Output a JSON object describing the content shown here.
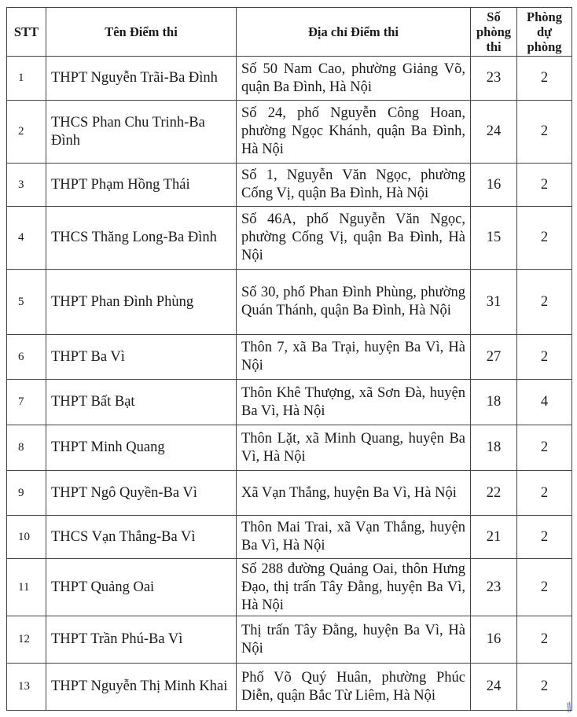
{
  "headers": {
    "stt": "STT",
    "name": "Tên Điểm thi",
    "address": "Địa chỉ Điểm thi",
    "rooms": "Số phòng thi",
    "spare": "Phòng dự phòng"
  },
  "rows": [
    {
      "stt": "1",
      "name": "THPT Nguyễn Trãi-Ba Đình",
      "address": "Số 50 Nam Cao, phường Giảng Võ, quận Ba Đình, Hà Nội",
      "rooms": "23",
      "spare": "2"
    },
    {
      "stt": "2",
      "name": "THCS Phan Chu Trinh-Ba Đình",
      "address": "Số 24, phố Nguyễn Công Hoan, phường Ngọc Khánh, quận Ba Đình, Hà Nội",
      "rooms": "24",
      "spare": "2"
    },
    {
      "stt": "3",
      "name": "THPT Phạm Hồng Thái",
      "address": "Số 1, Nguyễn Văn Ngọc, phường Cống Vị, quận Ba Đình, Hà Nội",
      "rooms": "16",
      "spare": "2"
    },
    {
      "stt": "4",
      "name": "THCS Thăng Long-Ba Đình",
      "address": "Số 46A, phố Nguyễn Văn Ngọc, phường Cống Vị, quận Ba Đình, Hà Nội",
      "rooms": "15",
      "spare": "2"
    },
    {
      "stt": "5",
      "name": "THPT Phan Đình Phùng",
      "address": "Số 30, phố Phan Đình Phùng, phường Quán Thánh, quận Ba Đình, Hà Nội",
      "rooms": "31",
      "spare": "2"
    },
    {
      "stt": "6",
      "name": "THPT Ba Vì",
      "address": "Thôn 7, xã Ba Trại, huyện Ba Vì, Hà Nội",
      "rooms": "27",
      "spare": "2"
    },
    {
      "stt": "7",
      "name": "THPT Bất Bạt",
      "address": "Thôn Khê Thượng, xã Sơn Đà, huyện Ba Vì, Hà Nội",
      "rooms": "18",
      "spare": "4"
    },
    {
      "stt": "8",
      "name": "THPT Minh Quang",
      "address": "Thôn Lặt, xã Minh Quang, huyện Ba Vì, Hà Nội",
      "rooms": "18",
      "spare": "2"
    },
    {
      "stt": "9",
      "name": "THPT Ngô Quyền-Ba Vì",
      "address": "Xã Vạn Thắng, huyện Ba Vì, Hà Nội",
      "rooms": "22",
      "spare": "2"
    },
    {
      "stt": "10",
      "name": "THCS Vạn Thắng-Ba Vì",
      "address": "Thôn Mai Trai, xã Vạn Thắng, huyện Ba Vì, Hà Nội",
      "rooms": "21",
      "spare": "2"
    },
    {
      "stt": "11",
      "name": "THPT Quảng Oai",
      "address": "Số 288 đường Quảng Oai, thôn Hưng Đạo, thị trấn Tây Đằng, huyện Ba Vì, Hà Nội",
      "rooms": "23",
      "spare": "2"
    },
    {
      "stt": "12",
      "name": "THPT Trần Phú-Ba Vì",
      "address": "Thị trấn Tây Đằng, huyện Ba Vì, Hà Nội",
      "rooms": "16",
      "spare": "2"
    },
    {
      "stt": "13",
      "name": "THPT Nguyễn Thị Minh Khai",
      "address": "Phố Võ Quý Huân, phường Phúc Diễn, quận Bắc Từ Liêm, Hà Nội",
      "rooms": "24",
      "spare": "2"
    }
  ]
}
